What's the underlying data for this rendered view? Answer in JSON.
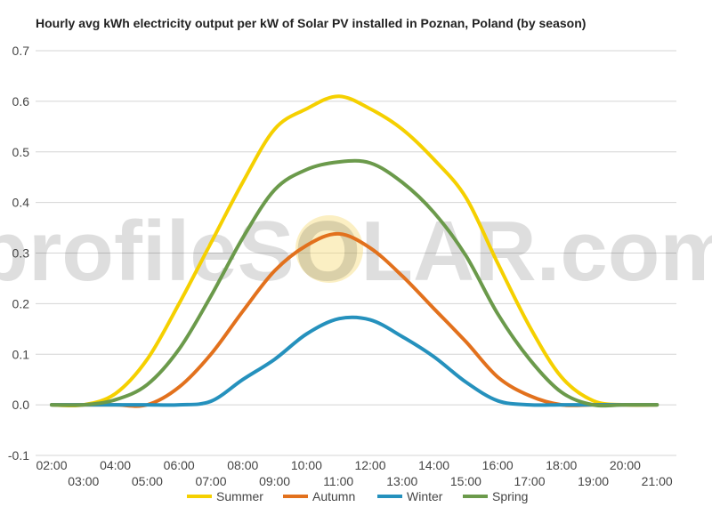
{
  "chart_data": {
    "type": "line",
    "title": "Hourly avg kWh electricity output per kW of Solar PV installed in Poznan, Poland (by season)",
    "xlabel": "",
    "ylabel": "",
    "ylim": [
      -0.1,
      0.7
    ],
    "yticks": [
      "-0.1",
      "0.0",
      "0.1",
      "0.2",
      "0.3",
      "0.4",
      "0.5",
      "0.6",
      "0.7"
    ],
    "grid": true,
    "legend_position": "bottom",
    "watermark": "profileSOLAR.com",
    "x": [
      "02:00",
      "03:00",
      "04:00",
      "05:00",
      "06:00",
      "07:00",
      "08:00",
      "09:00",
      "10:00",
      "11:00",
      "12:00",
      "13:00",
      "14:00",
      "15:00",
      "16:00",
      "17:00",
      "18:00",
      "19:00",
      "20:00",
      "21:00"
    ],
    "series": [
      {
        "name": "Summer",
        "color": "#f5d000",
        "values": [
          0.0,
          0.0,
          0.022,
          0.09,
          0.2,
          0.32,
          0.44,
          0.545,
          0.585,
          0.61,
          0.585,
          0.545,
          0.485,
          0.41,
          0.28,
          0.155,
          0.055,
          0.008,
          0.0,
          0.0
        ]
      },
      {
        "name": "Autumn",
        "color": "#e2711d",
        "values": [
          0.0,
          0.0,
          0.0,
          0.0,
          0.035,
          0.1,
          0.185,
          0.265,
          0.315,
          0.338,
          0.31,
          0.255,
          0.19,
          0.125,
          0.055,
          0.018,
          0.0,
          0.0,
          0.0,
          0.0
        ]
      },
      {
        "name": "Winter",
        "color": "#2591bd",
        "values": [
          0.0,
          0.0,
          0.0,
          0.0,
          0.0,
          0.007,
          0.05,
          0.09,
          0.14,
          0.17,
          0.168,
          0.135,
          0.095,
          0.045,
          0.008,
          0.0,
          0.0,
          0.0,
          0.0,
          0.0
        ]
      },
      {
        "name": "Spring",
        "color": "#6b9a4b",
        "values": [
          0.0,
          0.0,
          0.01,
          0.04,
          0.11,
          0.215,
          0.33,
          0.425,
          0.465,
          0.48,
          0.478,
          0.44,
          0.38,
          0.295,
          0.18,
          0.09,
          0.025,
          0.0,
          0.0,
          0.0
        ]
      }
    ]
  }
}
